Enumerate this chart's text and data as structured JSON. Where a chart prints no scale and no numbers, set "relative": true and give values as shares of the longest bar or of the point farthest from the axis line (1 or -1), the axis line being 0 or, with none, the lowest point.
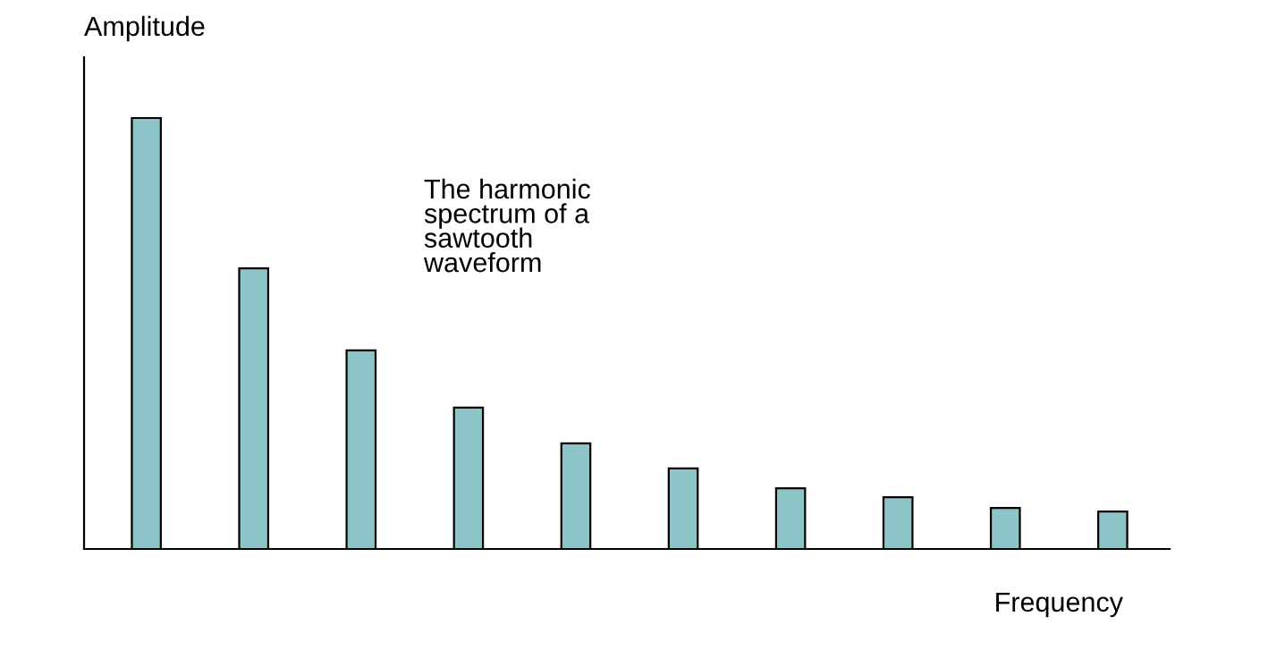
{
  "chart_data": {
    "type": "bar",
    "relative": true,
    "xlabel": "Frequency",
    "ylabel": "Amplitude",
    "annotations": [
      "The harmonic\nspectrum of a\nsawtooth\nwaveform"
    ],
    "categories": [
      null,
      null,
      null,
      null,
      null,
      null,
      null,
      null,
      null,
      null
    ],
    "values": [
      1,
      0.651,
      0.461,
      0.328,
      0.245,
      0.187,
      0.141,
      0.12,
      0.095,
      0.087
    ],
    "color": "#8cc4c8",
    "grid": false,
    "legend": false
  }
}
